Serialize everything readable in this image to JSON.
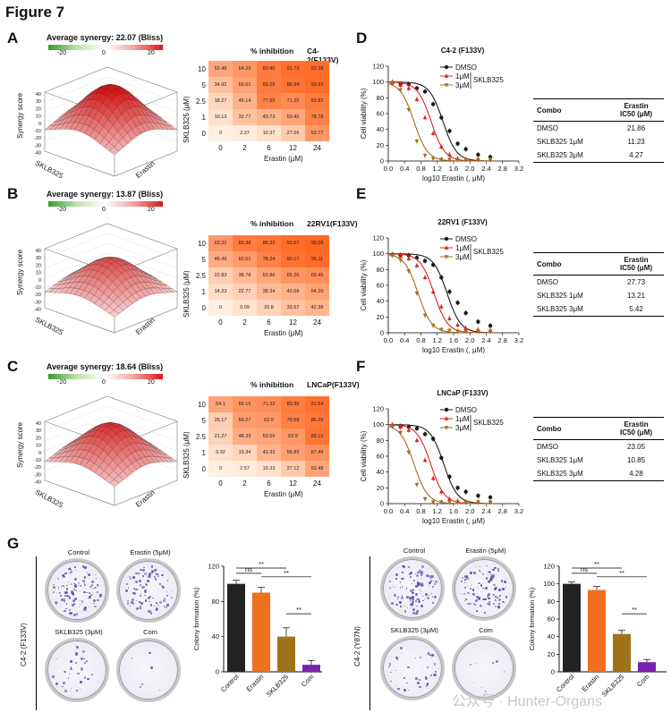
{
  "figure_title": "Figure 7",
  "panel_labels": {
    "A": "A",
    "B": "B",
    "C": "C",
    "D": "D",
    "E": "E",
    "F": "F",
    "G": "G"
  },
  "synergy_panels": [
    {
      "title": "Average synergy: 22.07 (Bliss)",
      "cbar_ticks": [
        "-20",
        "0",
        "20"
      ],
      "z_label": "Synergy score",
      "x_label": "Erastin",
      "y_label": "SKLB325",
      "z_ticks": [
        "40",
        "30",
        "20",
        "10",
        "0",
        "-10",
        "-20",
        "-30",
        "-40"
      ]
    },
    {
      "title": "Average synergy: 13.87 (Bliss)",
      "cbar_ticks": [
        "-20",
        "0",
        "20"
      ],
      "z_label": "Synergy score",
      "x_label": "Erastin",
      "y_label": "SKLB325",
      "z_ticks": [
        "40",
        "30",
        "20",
        "10",
        "0",
        "-10",
        "-20",
        "-30",
        "-40"
      ]
    },
    {
      "title": "Average synergy: 18.64 (Bliss)",
      "cbar_ticks": [
        "-20",
        "0",
        "20"
      ],
      "z_label": "Synergy score",
      "x_label": "Erastin",
      "y_label": "SKLB325",
      "z_ticks": [
        "40",
        "30",
        "20",
        "10",
        "0",
        "-10",
        "-20",
        "-30",
        "-40"
      ]
    }
  ],
  "heatmaps": [
    {
      "title": "% inhibition",
      "cell_line": "C4-2(F133V)",
      "y_label": "SKLB325 (μM)",
      "x_label": "Erastin (μM)",
      "rows": [
        "10",
        "5",
        "2.5",
        "1",
        "0"
      ],
      "cols": [
        "0",
        "2",
        "6",
        "12",
        "24"
      ],
      "values": [
        [
          "52.48",
          "64.29",
          "83.40",
          "91.73",
          "93.38"
        ],
        [
          "34.92",
          "55.61",
          "83.28",
          "88.84",
          "93.93"
        ],
        [
          "18.27",
          "45.14",
          "77.95",
          "71.35",
          "83.82"
        ],
        [
          "10.13",
          "32.77",
          "43.73",
          "53.45",
          "78.78"
        ],
        [
          "0",
          "2.37",
          "10.37",
          "27.06",
          "63.77"
        ]
      ]
    },
    {
      "title": "% inhibition",
      "cell_line": "22RV1(F133V)",
      "y_label": "SKLB325 (μM)",
      "x_label": "Erastin (μM)",
      "rows": [
        "10",
        "5",
        "2.5",
        "1",
        "0"
      ],
      "cols": [
        "0",
        "2",
        "6",
        "12",
        "24"
      ],
      "values": [
        [
          "63.32",
          "83.38",
          "86.32",
          "93.57",
          "98.08"
        ],
        [
          "48.49",
          "60.51",
          "78.24",
          "90.17",
          "95.11"
        ],
        [
          "22.83",
          "38.78",
          "53.86",
          "65.26",
          "69.45"
        ],
        [
          "14.23",
          "22.77",
          "38.34",
          "43.68",
          "54.20"
        ],
        [
          "0",
          "9.09",
          "20.8",
          "33.67",
          "42.38"
        ]
      ]
    },
    {
      "title": "% inhibition",
      "cell_line": "LNCaP(F133V)",
      "y_label": "SKLB325 (μM)",
      "x_label": "Erastin (μM)",
      "rows": [
        "10",
        "5",
        "2.5",
        "1",
        "0"
      ],
      "cols": [
        "0",
        "2",
        "6",
        "12",
        "24"
      ],
      "values": [
        [
          "54.1",
          "66.15",
          "71.32",
          "83.36",
          "91.54"
        ],
        [
          "25.17",
          "59.27",
          "62.9",
          "79.58",
          "86.25"
        ],
        [
          "21.27",
          "48.33",
          "53.56",
          "63.9",
          "88.12"
        ],
        [
          "9.92",
          "19.34",
          "43.33",
          "56.89",
          "67.44"
        ],
        [
          "0",
          "2.57",
          "10.33",
          "27.12",
          "53.48"
        ]
      ]
    }
  ],
  "chart_data": [
    {
      "type": "line",
      "title": "C4-2 (F133V)",
      "xlabel": "log10 Erastin (, μM)",
      "ylabel": "Cell viability (%)",
      "x_ticks": [
        "0.0",
        "0.4",
        "0.8",
        "1.2",
        "1.6",
        "2.0",
        "2.4",
        "2.8",
        "3.2"
      ],
      "y_ticks": [
        "0",
        "20",
        "40",
        "60",
        "80",
        "100",
        "120"
      ],
      "xlim": [
        0,
        3.2
      ],
      "ylim": [
        0,
        120
      ],
      "legend": [
        "DMSO",
        "1μM",
        "3μM"
      ],
      "legend_group": "SKLB325",
      "series": [
        {
          "name": "DMSO",
          "color": "#1a1a1a",
          "ic50": 1.34,
          "x": [
            0.1,
            0.3,
            0.5,
            0.7,
            0.9,
            1.1,
            1.3,
            1.5,
            1.7,
            1.9,
            2.2,
            2.5
          ],
          "y": [
            99,
            97,
            97,
            92,
            88,
            72,
            55,
            38,
            22,
            15,
            8,
            5
          ]
        },
        {
          "name": "1μM",
          "color": "#e02020",
          "ic50": 1.05,
          "x": [
            0.1,
            0.3,
            0.5,
            0.7,
            0.9,
            1.1,
            1.3,
            1.5,
            1.7,
            1.9,
            2.2,
            2.5
          ],
          "y": [
            100,
            96,
            92,
            78,
            55,
            35,
            18,
            8,
            3,
            2,
            2,
            2
          ]
        },
        {
          "name": "3μM",
          "color": "#a07020",
          "ic50": 0.63,
          "x": [
            0.1,
            0.3,
            0.5,
            0.7,
            0.9,
            1.1,
            1.3,
            1.5,
            1.7,
            1.9,
            2.2,
            2.5
          ],
          "y": [
            98,
            90,
            65,
            25,
            7,
            3,
            2,
            2,
            2,
            2,
            2,
            2
          ]
        }
      ]
    },
    {
      "type": "line",
      "title": "22RV1 (F133V)",
      "xlabel": "log10 Erastin (, μM)",
      "ylabel": "Cell viability (%)",
      "x_ticks": [
        "0.0",
        "0.4",
        "0.8",
        "1.2",
        "1.6",
        "2.0",
        "2.4",
        "2.8",
        "3.2"
      ],
      "y_ticks": [
        "0",
        "20",
        "40",
        "60",
        "80",
        "100",
        "120"
      ],
      "xlim": [
        0,
        3.2
      ],
      "ylim": [
        0,
        120
      ],
      "legend": [
        "DMSO",
        "1μM",
        "3μM"
      ],
      "legend_group": "SKLB325",
      "series": [
        {
          "name": "DMSO",
          "color": "#1a1a1a",
          "ic50": 1.44,
          "x": [
            0.1,
            0.3,
            0.5,
            0.7,
            0.9,
            1.1,
            1.3,
            1.5,
            1.7,
            1.9,
            2.2,
            2.5
          ],
          "y": [
            99,
            98,
            98,
            95,
            91,
            86,
            70,
            52,
            38,
            25,
            14,
            9
          ]
        },
        {
          "name": "1μM",
          "color": "#e02020",
          "ic50": 1.12,
          "x": [
            0.1,
            0.3,
            0.5,
            0.7,
            0.9,
            1.1,
            1.3,
            1.5,
            1.7,
            1.9,
            2.2,
            2.5
          ],
          "y": [
            99,
            97,
            94,
            85,
            70,
            52,
            33,
            18,
            10,
            6,
            4,
            3
          ]
        },
        {
          "name": "3μM",
          "color": "#a07020",
          "ic50": 0.73,
          "x": [
            0.1,
            0.3,
            0.5,
            0.7,
            0.9,
            1.1,
            1.3,
            1.5,
            1.7,
            1.9,
            2.2,
            2.5
          ],
          "y": [
            98,
            92,
            78,
            50,
            22,
            9,
            4,
            3,
            2,
            2,
            2,
            2
          ]
        }
      ]
    },
    {
      "type": "line",
      "title": "LNCaP (F133V)",
      "xlabel": "log10 Erastin (, μM)",
      "ylabel": "Cell viability (%)",
      "x_ticks": [
        "0.0",
        "0.4",
        "0.8",
        "1.2",
        "1.6",
        "2.0",
        "2.4",
        "2.8",
        "3.2"
      ],
      "y_ticks": [
        "0",
        "20",
        "40",
        "60",
        "80",
        "100",
        "120"
      ],
      "xlim": [
        0,
        3.2
      ],
      "ylim": [
        0,
        120
      ],
      "legend": [
        "DMSO",
        "1μM",
        "3μM"
      ],
      "legend_group": "SKLB325",
      "series": [
        {
          "name": "DMSO",
          "color": "#1a1a1a",
          "ic50": 1.36,
          "x": [
            0.1,
            0.3,
            0.5,
            0.7,
            0.9,
            1.1,
            1.3,
            1.5,
            1.7,
            1.9,
            2.2,
            2.5
          ],
          "y": [
            99,
            98,
            97,
            95,
            88,
            82,
            58,
            34,
            20,
            15,
            10,
            8
          ]
        },
        {
          "name": "1μM",
          "color": "#e02020",
          "ic50": 1.04,
          "x": [
            0.1,
            0.3,
            0.5,
            0.7,
            0.9,
            1.1,
            1.3,
            1.5,
            1.7,
            1.9,
            2.2,
            2.5
          ],
          "y": [
            100,
            97,
            93,
            80,
            55,
            32,
            15,
            6,
            3,
            2,
            2,
            2
          ]
        },
        {
          "name": "3μM",
          "color": "#a07020",
          "ic50": 0.63,
          "x": [
            0.1,
            0.3,
            0.5,
            0.7,
            0.9,
            1.1,
            1.3,
            1.5,
            1.7,
            1.9,
            2.2,
            2.5
          ],
          "y": [
            98,
            90,
            65,
            24,
            6,
            2,
            2,
            2,
            2,
            2,
            2,
            2
          ]
        }
      ]
    },
    {
      "type": "bar",
      "title": "",
      "ylabel": "Colony formation (%)",
      "categories": [
        "Control",
        "Erastin",
        "SKLB325",
        "Com"
      ],
      "values": [
        100,
        90,
        40,
        8
      ],
      "errors": [
        4,
        6,
        10,
        5
      ],
      "colors": [
        "#222222",
        "#f07020",
        "#a0721a",
        "#7a22b0"
      ],
      "ylim": [
        0,
        120
      ],
      "y_ticks": [
        "0",
        "40",
        "80",
        "120"
      ],
      "sig": [
        {
          "label": "ns",
          "from": 0,
          "to": 1
        },
        {
          "label": "**",
          "from": 0,
          "to": 2
        },
        {
          "label": "**",
          "from": 1,
          "to": 3
        },
        {
          "label": "**",
          "from": 2,
          "to": 3
        }
      ]
    },
    {
      "type": "bar",
      "title": "",
      "ylabel": "Colony formation (%)",
      "categories": [
        "Control",
        "Erastin",
        "SKLB325",
        "Com"
      ],
      "values": [
        100,
        93,
        43,
        11
      ],
      "errors": [
        2,
        4,
        4,
        3
      ],
      "colors": [
        "#222222",
        "#f07020",
        "#a0721a",
        "#7a22b0"
      ],
      "ylim": [
        0,
        120
      ],
      "y_ticks": [
        "0",
        "20",
        "40",
        "60",
        "80",
        "100",
        "120"
      ],
      "sig": [
        {
          "label": "ns",
          "from": 0,
          "to": 1
        },
        {
          "label": "**",
          "from": 0,
          "to": 2
        },
        {
          "label": "**",
          "from": 1,
          "to": 3
        },
        {
          "label": "**",
          "from": 2,
          "to": 3
        }
      ]
    }
  ],
  "ic50_tables": [
    {
      "head_combo": "Combo",
      "head_ic50_line1": "Erastin",
      "head_ic50_line2": "IC50 (μM)",
      "rows": [
        {
          "combo": "DMSO",
          "ic50": "21.86"
        },
        {
          "combo": "SKLB325 1μM",
          "ic50": "11.23"
        },
        {
          "combo": "SKLB325 3μM",
          "ic50": "4.27"
        }
      ]
    },
    {
      "head_combo": "Combo",
      "head_ic50_line1": "Erastin",
      "head_ic50_line2": "IC50 (μM)",
      "rows": [
        {
          "combo": "DMSO",
          "ic50": "27.73"
        },
        {
          "combo": "SKLB325 1μM",
          "ic50": "13.21"
        },
        {
          "combo": "SKLB325 3μM",
          "ic50": "5.42"
        }
      ]
    },
    {
      "head_combo": "Combo",
      "head_ic50_line1": "Erastin",
      "head_ic50_line2": "IC50 (μM)",
      "rows": [
        {
          "combo": "DMSO",
          "ic50": "23.05"
        },
        {
          "combo": "SKLB325 1μM",
          "ic50": "10.85"
        },
        {
          "combo": "SKLB325 3μM",
          "ic50": "4.28"
        }
      ]
    }
  ],
  "colony": {
    "left_cell_line": "C4-2 (F133V)",
    "right_cell_line": "C4-2 (Y87N)",
    "dish_labels": [
      "Control",
      "Erastin (5μM)",
      "SKLB325 (3μM)",
      "Com"
    ]
  },
  "watermark": "公众号 · Hunter-Organs"
}
